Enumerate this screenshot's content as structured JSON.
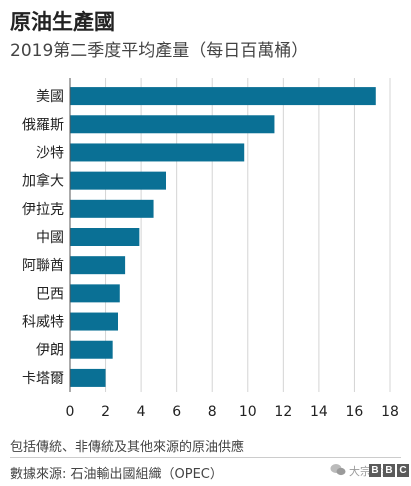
{
  "title": "原油生產國",
  "subtitle": "2019第二季度平均產量（每日百萬桶）",
  "footnote": "包括傳統、非傳統及其他來源的原油供應",
  "source": "數據來源: 石油輸出國組織（OPEC）",
  "watermark": "大宗财经",
  "logo": [
    "B",
    "B",
    "C"
  ],
  "colors": {
    "bar": "#0a7095",
    "grid": "#d4d4d4",
    "text": "#222222"
  },
  "chart_data": {
    "type": "bar",
    "orientation": "horizontal",
    "title": "原油生產國",
    "subtitle": "2019第二季度平均產量（每日百萬桶）",
    "categories": [
      "美國",
      "俄羅斯",
      "沙特",
      "加拿大",
      "伊拉克",
      "中國",
      "阿聯酋",
      "巴西",
      "科威特",
      "伊朗",
      "卡塔爾"
    ],
    "values": [
      17.2,
      11.5,
      9.8,
      5.4,
      4.7,
      3.9,
      3.1,
      2.8,
      2.7,
      2.4,
      2.0
    ],
    "xlim": [
      0,
      18
    ],
    "xticks": [
      0,
      2,
      4,
      6,
      8,
      10,
      12,
      14,
      16,
      18
    ],
    "grid": true
  }
}
